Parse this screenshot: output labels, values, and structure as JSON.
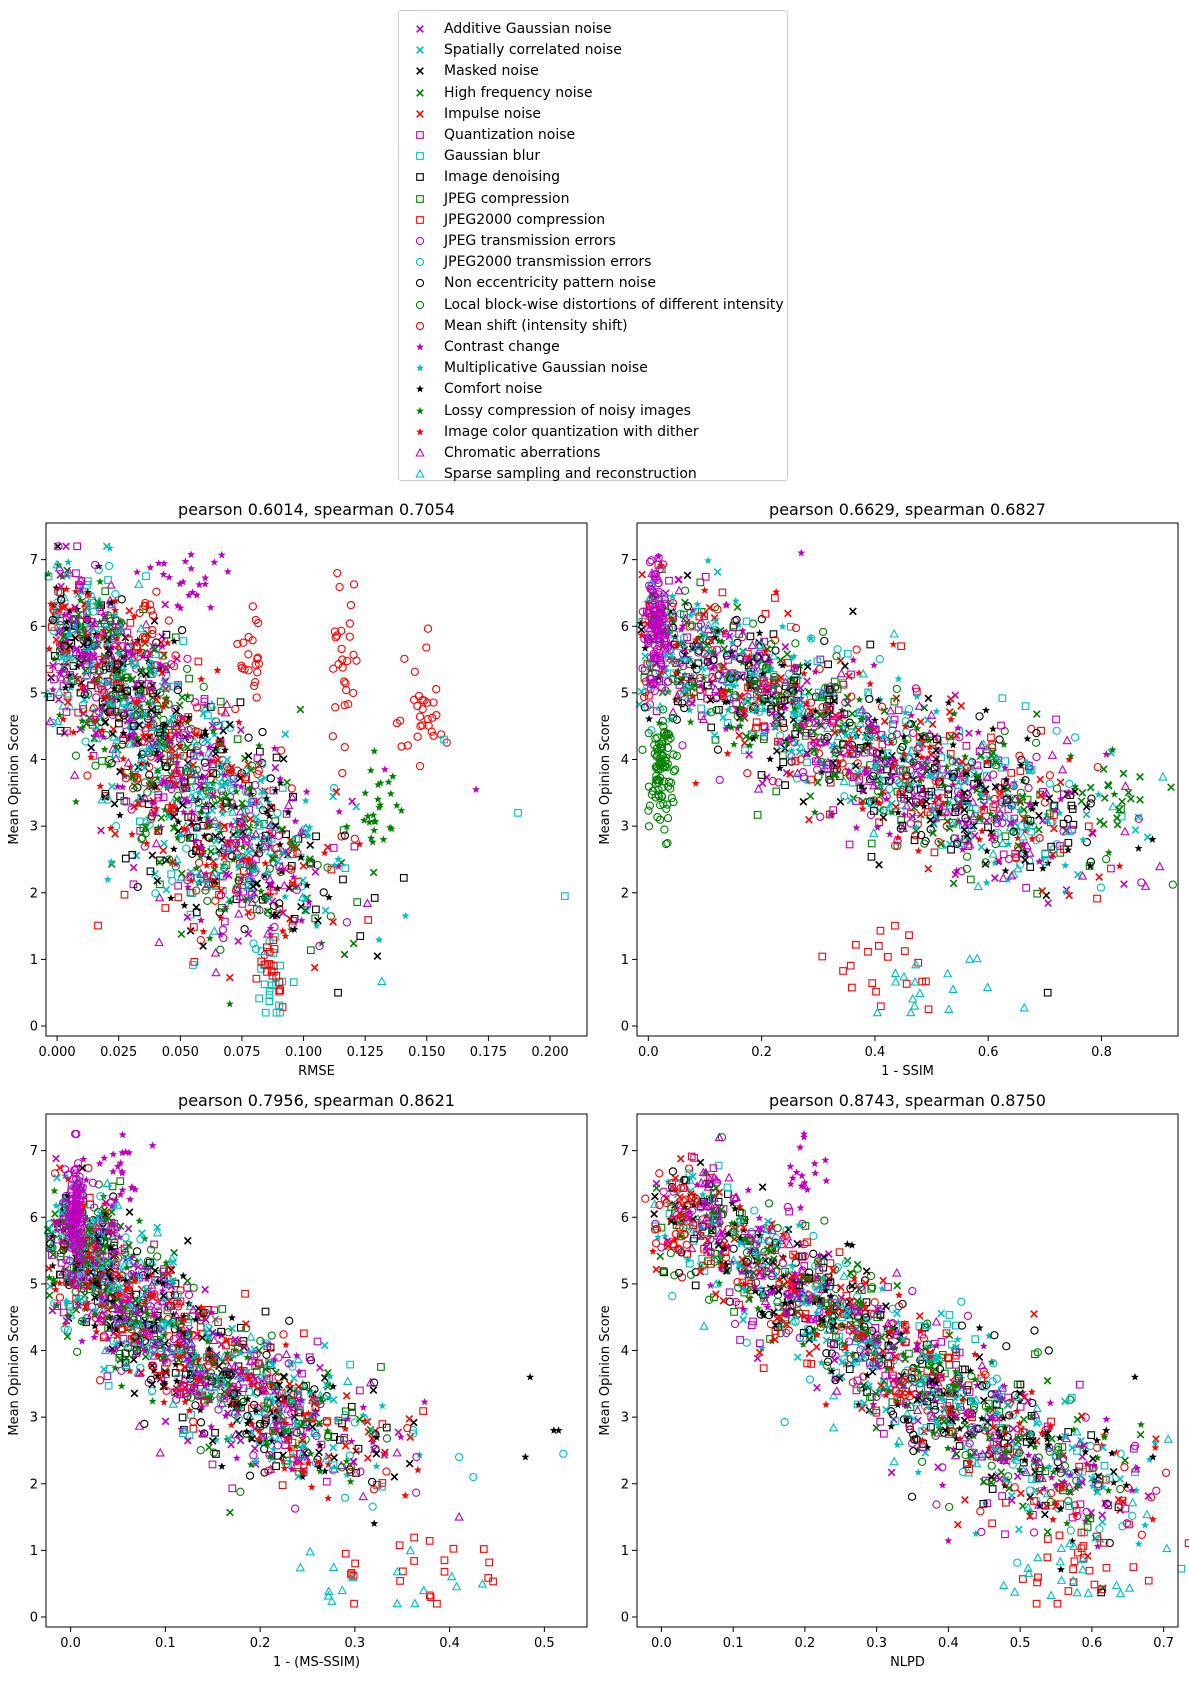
{
  "legend": [
    {
      "label": "Additive Gaussian noise",
      "marker": "x",
      "color": "#bf00bf"
    },
    {
      "label": "Spatially correlated noise",
      "marker": "x",
      "color": "#00bfbf"
    },
    {
      "label": "Masked noise",
      "marker": "x",
      "color": "#000000"
    },
    {
      "label": "High frequency noise",
      "marker": "x",
      "color": "#008000"
    },
    {
      "label": "Impulse noise",
      "marker": "x",
      "color": "#ff0000"
    },
    {
      "label": "Quantization noise",
      "marker": "square",
      "color": "#bf00bf"
    },
    {
      "label": "Gaussian blur",
      "marker": "square",
      "color": "#00bfbf"
    },
    {
      "label": "Image denoising",
      "marker": "square",
      "color": "#000000"
    },
    {
      "label": "JPEG compression",
      "marker": "square",
      "color": "#008000"
    },
    {
      "label": "JPEG2000 compression",
      "marker": "square",
      "color": "#ff0000"
    },
    {
      "label": "JPEG transmission errors",
      "marker": "circle",
      "color": "#bf00bf"
    },
    {
      "label": "JPEG2000 transmission errors",
      "marker": "circle",
      "color": "#00bfbf"
    },
    {
      "label": "Non eccentricity pattern noise",
      "marker": "circle",
      "color": "#000000"
    },
    {
      "label": "Local block-wise distortions of different intensity",
      "marker": "circle",
      "color": "#008000"
    },
    {
      "label": "Mean shift (intensity shift)",
      "marker": "circle",
      "color": "#ff0000"
    },
    {
      "label": "Contrast change",
      "marker": "star",
      "color": "#bf00bf"
    },
    {
      "label": "Multiplicative Gaussian noise",
      "marker": "star",
      "color": "#00bfbf"
    },
    {
      "label": "Comfort noise",
      "marker": "star",
      "color": "#000000"
    },
    {
      "label": "Lossy compression of noisy images",
      "marker": "star",
      "color": "#008000"
    },
    {
      "label": "Image color quantization with dither",
      "marker": "star",
      "color": "#ff0000"
    },
    {
      "label": "Chromatic aberrations",
      "marker": "triangle",
      "color": "#bf00bf"
    },
    {
      "label": "Sparse sampling and reconstruction",
      "marker": "triangle",
      "color": "#00bfbf"
    }
  ],
  "chart_data": [
    {
      "type": "scatter",
      "title": "pearson 0.6014, spearman 0.7054",
      "xlabel": "RMSE",
      "ylabel": "Mean Opinion Score",
      "xlim": [
        -0.0045,
        0.215
      ],
      "ylim": [
        -0.15,
        7.55
      ],
      "xticks": [
        0.0,
        0.025,
        0.05,
        0.075,
        0.1,
        0.125,
        0.15,
        0.175,
        0.2
      ],
      "xticklabels": [
        "0.000",
        "0.025",
        "0.050",
        "0.075",
        "0.100",
        "0.125",
        "0.150",
        "0.175",
        "0.200"
      ],
      "yticks": [
        0,
        1,
        2,
        3,
        4,
        5,
        6,
        7
      ],
      "yticklabels": [
        "0",
        "1",
        "2",
        "3",
        "4",
        "5",
        "6",
        "7"
      ],
      "main_cloud": {
        "x_start": [
          0.004,
          6.3
        ],
        "x_end": [
          0.09,
          1.8
        ],
        "spread_x": 0.024,
        "spread_y": 1.0
      },
      "points": [
        {
          "x": 0.206,
          "y": 1.95,
          "s": 6
        },
        {
          "x": 0.187,
          "y": 3.2,
          "s": 6
        },
        {
          "x": 0.157,
          "y": 4.3,
          "s": 6
        },
        {
          "x": 0.114,
          "y": 0.5,
          "s": 7
        },
        {
          "x": 0.116,
          "y": 2.2,
          "s": 7
        },
        {
          "x": 0.105,
          "y": 1.75,
          "s": 7
        },
        {
          "x": 0.123,
          "y": 1.35,
          "s": 7
        },
        {
          "x": 0.17,
          "y": 3.55,
          "s": 15
        },
        {
          "x": 0.0645,
          "y": 0.8,
          "s": 20
        },
        {
          "x": 0.133,
          "y": 3.85,
          "s": 15
        },
        {
          "x": 0.0025,
          "y": 5.3,
          "s": 10
        },
        {
          "x": 0.005,
          "y": 6.8,
          "s": 20
        }
      ],
      "clusters": [
        {
          "x": 0.116,
          "y": 5.3,
          "sx": 0.003,
          "sy": 0.6,
          "n": 28,
          "s": 14
        },
        {
          "x": 0.148,
          "y": 4.7,
          "sx": 0.006,
          "sy": 0.45,
          "n": 30,
          "s": 14
        },
        {
          "x": 0.13,
          "y": 3.3,
          "sx": 0.004,
          "sy": 0.35,
          "n": 26,
          "s": 18
        },
        {
          "x": 0.052,
          "y": 6.6,
          "sx": 0.009,
          "sy": 0.3,
          "n": 22,
          "s": 15
        },
        {
          "x": 0.079,
          "y": 5.6,
          "sx": 0.002,
          "sy": 0.45,
          "n": 20,
          "s": 14
        },
        {
          "x": 0.087,
          "y": 0.7,
          "sx": 0.003,
          "sy": 0.3,
          "n": 22,
          "s": 6
        },
        {
          "x": 0.085,
          "y": 0.9,
          "sx": 0.004,
          "sy": 0.25,
          "n": 16,
          "s": 9
        },
        {
          "x": 0.036,
          "y": 6.1,
          "sx": 0.002,
          "sy": 0.25,
          "n": 12,
          "s": 14
        }
      ]
    },
    {
      "type": "scatter",
      "title": "pearson 0.6629, spearman 0.6827",
      "xlabel": "1 - SSIM",
      "ylabel": "Mean Opinion Score",
      "xlim": [
        -0.02,
        0.935
      ],
      "ylim": [
        -0.15,
        7.55
      ],
      "xticks": [
        0.0,
        0.2,
        0.4,
        0.6,
        0.8
      ],
      "xticklabels": [
        "0.0",
        "0.2",
        "0.4",
        "0.6",
        "0.8"
      ],
      "yticks": [
        0,
        1,
        2,
        3,
        4,
        5,
        6,
        7
      ],
      "yticklabels": [
        "0",
        "1",
        "2",
        "3",
        "4",
        "5",
        "6",
        "7"
      ],
      "main_cloud": {
        "x_start": [
          0.01,
          5.9
        ],
        "x_end": [
          0.72,
          2.8
        ],
        "spread_x": 0.12,
        "spread_y": 0.9
      },
      "points": [
        {
          "x": 0.89,
          "y": 2.8,
          "s": 17
        },
        {
          "x": 0.78,
          "y": 2.4,
          "s": 17
        },
        {
          "x": 0.705,
          "y": 0.5,
          "s": 7
        },
        {
          "x": 0.62,
          "y": 4.3,
          "s": 12
        },
        {
          "x": 0.53,
          "y": 4.85,
          "s": 17
        },
        {
          "x": 0.27,
          "y": 7.1,
          "s": 15
        },
        {
          "x": 0.47,
          "y": 0.3,
          "s": 21
        }
      ],
      "clusters": [
        {
          "x": 0.025,
          "y": 3.8,
          "sx": 0.012,
          "sy": 0.45,
          "n": 90,
          "s": 13
        },
        {
          "x": 0.015,
          "y": 6.0,
          "sx": 0.01,
          "sy": 0.45,
          "n": 110,
          "s": 10
        },
        {
          "x": 0.82,
          "y": 3.5,
          "sx": 0.04,
          "sy": 0.3,
          "n": 18,
          "s": 3
        },
        {
          "x": 0.4,
          "y": 0.8,
          "sx": 0.06,
          "sy": 0.3,
          "n": 20,
          "s": 9
        },
        {
          "x": 0.5,
          "y": 0.6,
          "sx": 0.07,
          "sy": 0.25,
          "n": 16,
          "s": 21
        }
      ]
    },
    {
      "type": "scatter",
      "title": "pearson 0.7956, spearman 0.8621",
      "xlabel": "1 - (MS-SSIM)",
      "ylabel": "Mean Opinion Score",
      "xlim": [
        -0.026,
        0.545
      ],
      "ylim": [
        -0.15,
        7.55
      ],
      "xticks": [
        0.0,
        0.1,
        0.2,
        0.3,
        0.4,
        0.5
      ],
      "xticklabels": [
        "0.0",
        "0.1",
        "0.2",
        "0.3",
        "0.4",
        "0.5"
      ],
      "yticks": [
        0,
        1,
        2,
        3,
        4,
        5,
        6,
        7
      ],
      "yticklabels": [
        "0",
        "1",
        "2",
        "3",
        "4",
        "5",
        "6",
        "7"
      ],
      "main_cloud": {
        "x_start": [
          0.003,
          6.1
        ],
        "x_end": [
          0.3,
          2.4
        ],
        "spread_x": 0.05,
        "spread_y": 0.8,
        "curve": 0.35
      },
      "points": [
        {
          "x": 0.51,
          "y": 2.8,
          "s": 17
        },
        {
          "x": 0.515,
          "y": 2.8,
          "s": 17
        },
        {
          "x": 0.485,
          "y": 3.6,
          "s": 17
        },
        {
          "x": 0.48,
          "y": 2.4,
          "s": 17
        },
        {
          "x": 0.52,
          "y": 2.45,
          "s": 11
        },
        {
          "x": 0.41,
          "y": 2.4,
          "s": 11
        },
        {
          "x": 0.425,
          "y": 2.1,
          "s": 11
        },
        {
          "x": 0.41,
          "y": 1.5,
          "s": 20
        },
        {
          "x": 0.365,
          "y": 2.4,
          "s": 10
        }
      ],
      "clusters": [
        {
          "x": 0.005,
          "y": 6.0,
          "sx": 0.004,
          "sy": 0.45,
          "n": 110,
          "s": 10
        },
        {
          "x": 0.05,
          "y": 6.7,
          "sx": 0.015,
          "sy": 0.35,
          "n": 20,
          "s": 15
        },
        {
          "x": 0.36,
          "y": 0.8,
          "sx": 0.04,
          "sy": 0.3,
          "n": 22,
          "s": 9
        },
        {
          "x": 0.34,
          "y": 0.55,
          "sx": 0.05,
          "sy": 0.2,
          "n": 16,
          "s": 21
        }
      ]
    },
    {
      "type": "scatter",
      "title": "pearson 0.8743, spearman 0.8750",
      "xlabel": "NLPD",
      "ylabel": "Mean Opinion Score",
      "xlim": [
        -0.034,
        0.72
      ],
      "ylim": [
        -0.15,
        7.55
      ],
      "xticks": [
        0.0,
        0.1,
        0.2,
        0.3,
        0.4,
        0.5,
        0.6,
        0.7
      ],
      "xticklabels": [
        "0.0",
        "0.1",
        "0.2",
        "0.3",
        "0.4",
        "0.5",
        "0.6",
        "0.7"
      ],
      "yticks": [
        0,
        1,
        2,
        3,
        4,
        5,
        6,
        7
      ],
      "yticklabels": [
        "0",
        "1",
        "2",
        "3",
        "4",
        "5",
        "6",
        "7"
      ],
      "main_cloud": {
        "x_start": [
          0.02,
          6.2
        ],
        "x_end": [
          0.62,
          1.6
        ],
        "spread_x": 0.07,
        "spread_y": 0.8
      },
      "points": [
        {
          "x": 0.685,
          "y": 2.4,
          "s": 17
        },
        {
          "x": 0.66,
          "y": 3.6,
          "s": 17
        },
        {
          "x": 0.64,
          "y": 2.45,
          "s": 11
        },
        {
          "x": 0.54,
          "y": 4.0,
          "s": 12
        },
        {
          "x": 0.52,
          "y": 4.3,
          "s": 12
        },
        {
          "x": 0.64,
          "y": 0.35,
          "s": 21
        },
        {
          "x": 0.62,
          "y": 2.8,
          "s": 17
        }
      ],
      "clusters": [
        {
          "x": 0.025,
          "y": 6.0,
          "sx": 0.015,
          "sy": 0.35,
          "n": 30,
          "s": 14
        },
        {
          "x": 0.07,
          "y": 6.4,
          "sx": 0.02,
          "sy": 0.35,
          "n": 20,
          "s": 20
        },
        {
          "x": 0.19,
          "y": 6.8,
          "sx": 0.025,
          "sy": 0.3,
          "n": 18,
          "s": 15
        },
        {
          "x": 0.58,
          "y": 0.7,
          "sx": 0.04,
          "sy": 0.3,
          "n": 24,
          "s": 9
        },
        {
          "x": 0.57,
          "y": 0.6,
          "sx": 0.04,
          "sy": 0.25,
          "n": 18,
          "s": 21
        }
      ]
    }
  ]
}
